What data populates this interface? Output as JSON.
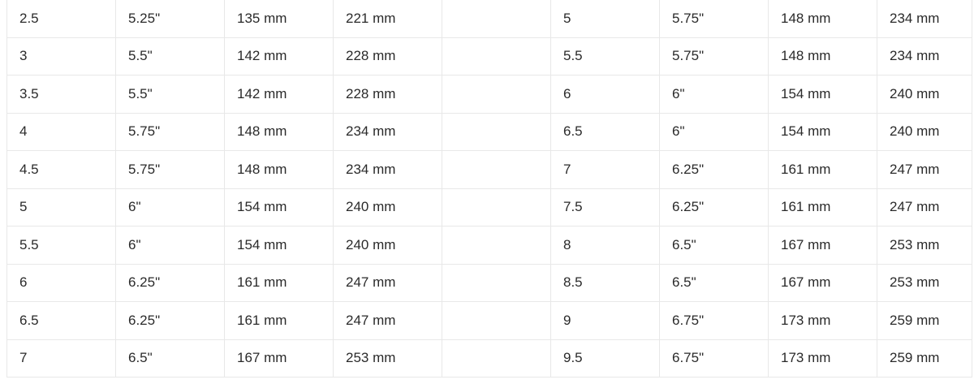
{
  "rows": [
    [
      "2.5",
      "5.25\"",
      "135 mm",
      "221 mm",
      "",
      "5",
      "5.75\"",
      "148 mm",
      "234 mm"
    ],
    [
      "3",
      "5.5\"",
      "142 mm",
      "228 mm",
      "",
      "5.5",
      "5.75\"",
      "148 mm",
      "234 mm"
    ],
    [
      "3.5",
      "5.5\"",
      "142 mm",
      "228 mm",
      "",
      "6",
      "6\"",
      "154 mm",
      "240 mm"
    ],
    [
      "4",
      "5.75\"",
      "148 mm",
      "234 mm",
      "",
      "6.5",
      "6\"",
      "154 mm",
      "240 mm"
    ],
    [
      "4.5",
      "5.75\"",
      "148 mm",
      "234 mm",
      "",
      "7",
      "6.25\"",
      "161 mm",
      "247 mm"
    ],
    [
      "5",
      "6\"",
      "154 mm",
      "240 mm",
      "",
      "7.5",
      "6.25\"",
      "161 mm",
      "247 mm"
    ],
    [
      "5.5",
      "6\"",
      "154 mm",
      "240 mm",
      "",
      "8",
      "6.5\"",
      "167 mm",
      "253 mm"
    ],
    [
      "6",
      "6.25\"",
      "161 mm",
      "247 mm",
      "",
      "8.5",
      "6.5\"",
      "167 mm",
      "253 mm"
    ],
    [
      "6.5",
      "6.25\"",
      "161 mm",
      "247 mm",
      "",
      "9",
      "6.75\"",
      "173 mm",
      "259 mm"
    ],
    [
      "7",
      "6.5\"",
      "167 mm",
      "253 mm",
      "",
      "9.5",
      "6.75\"",
      "173 mm",
      "259 mm"
    ]
  ]
}
